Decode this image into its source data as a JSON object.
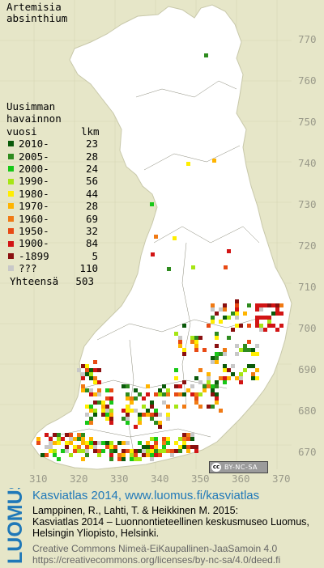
{
  "species": {
    "line1": "Artemisia",
    "line2": "absinthium"
  },
  "legend": {
    "header1": "Uusimman",
    "header2": "havainnon",
    "header_vuosi": "vuosi",
    "header_lkm": "lkm",
    "items": [
      {
        "label": "2010-",
        "count": "23",
        "color": "#0a5a0a"
      },
      {
        "label": "2005-",
        "count": "28",
        "color": "#2e8b1e"
      },
      {
        "label": "2000-",
        "count": "24",
        "color": "#18c818"
      },
      {
        "label": "1990-",
        "count": "56",
        "color": "#a6e614"
      },
      {
        "label": "1980-",
        "count": "44",
        "color": "#ffee00"
      },
      {
        "label": "1970-",
        "count": "28",
        "color": "#ffb400"
      },
      {
        "label": "1960-",
        "count": "69",
        "color": "#f07a14"
      },
      {
        "label": "1950-",
        "count": "32",
        "color": "#e84a14"
      },
      {
        "label": "1900-",
        "count": "84",
        "color": "#d21414"
      },
      {
        "label": "-1899",
        "count": "5",
        "color": "#8a1010"
      },
      {
        "label": "???",
        "count": "110",
        "color": "#c8c8c8"
      }
    ],
    "total_label": "Yhteensä",
    "total_count": "503"
  },
  "y_ticks": [
    "770",
    "760",
    "750",
    "740",
    "730",
    "720",
    "710",
    "700",
    "690",
    "680",
    "670"
  ],
  "x_ticks": [
    "310",
    "320",
    "330",
    "340",
    "350",
    "360",
    "370"
  ],
  "license_badge": {
    "cc": "cc",
    "text": "BY-NC-SA"
  },
  "logo_text": "LUOMUS",
  "footer": {
    "title": "Kasviatlas 2014, www.luomus.fi/kasviatlas",
    "citation1": "Lamppinen, R., Lahti, T. & Heikkinen M. 2015:",
    "citation2": "Kasviatlas 2014 – Luonnontieteellinen keskusmuseo Luomus,",
    "citation3": "Helsingin Yliopisto, Helsinki.",
    "license1": "Creative Commons Nimeä-EiKaupallinen-JaaSamoin 4.0",
    "license2": "https://creativecommons.org/licenses/by-nc-sa/4.0/deed.fi"
  }
}
